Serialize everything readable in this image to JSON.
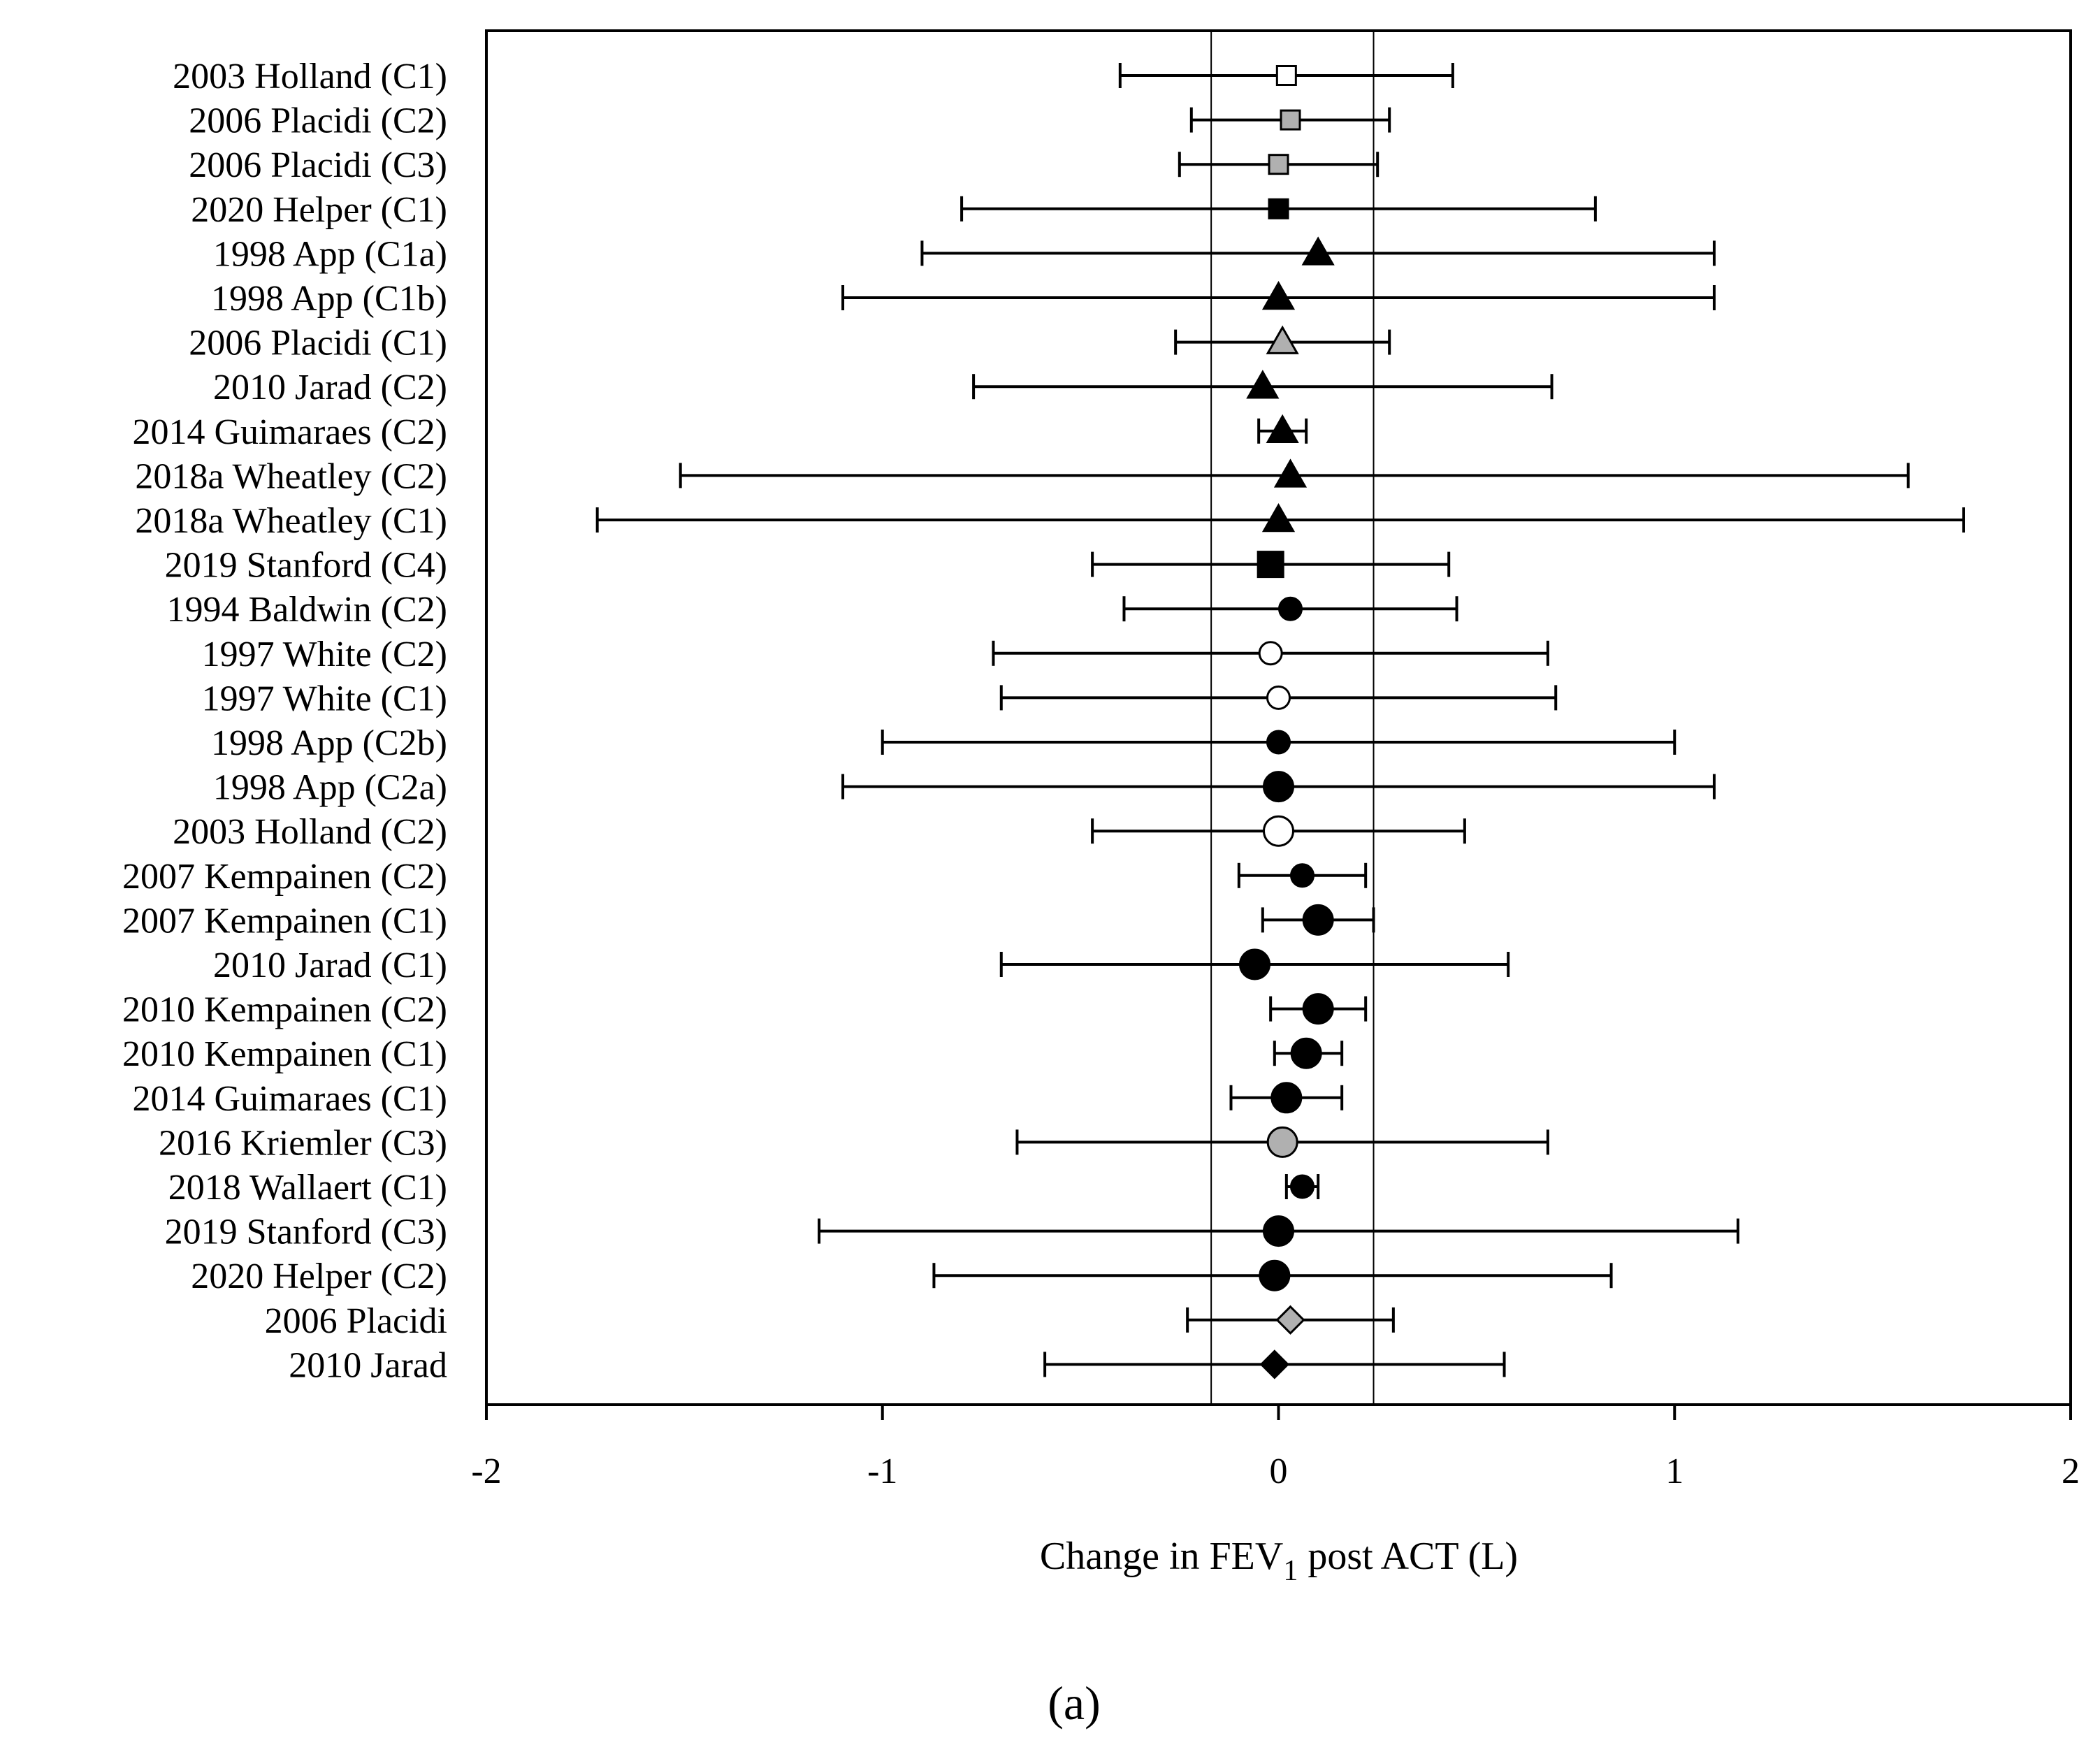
{
  "chart_data": {
    "type": "forest",
    "xlabel": "Change in FEV",
    "xlabel_subscript": "1",
    "xlabel_suffix": " post ACT (L)",
    "panel_label": "(a)",
    "xlim": [
      -2,
      2
    ],
    "xticks": [
      -2,
      -1,
      0,
      1,
      2
    ],
    "xtick_labels": [
      "-2",
      "-1",
      "0",
      "1",
      "2"
    ],
    "reference_lines": [
      -0.17,
      0.24
    ],
    "studies": [
      {
        "label": "2003 Holland (C1)",
        "mean": 0.02,
        "lower": -0.4,
        "upper": 0.44,
        "marker": "square",
        "fill": "white",
        "size": "small"
      },
      {
        "label": "2006 Placidi (C2)",
        "mean": 0.03,
        "lower": -0.22,
        "upper": 0.28,
        "marker": "square",
        "fill": "gray",
        "size": "small"
      },
      {
        "label": "2006 Placidi (C3)",
        "mean": 0.0,
        "lower": -0.25,
        "upper": 0.25,
        "marker": "square",
        "fill": "gray",
        "size": "small"
      },
      {
        "label": "2020 Helper (C1)",
        "mean": 0.0,
        "lower": -0.8,
        "upper": 0.8,
        "marker": "square",
        "fill": "black",
        "size": "small"
      },
      {
        "label": "1998 App (C1a)",
        "mean": 0.1,
        "lower": -0.9,
        "upper": 1.1,
        "marker": "triangle",
        "fill": "black",
        "size": "small"
      },
      {
        "label": "1998 App (C1b)",
        "mean": 0.0,
        "lower": -1.1,
        "upper": 1.1,
        "marker": "triangle",
        "fill": "black",
        "size": "small"
      },
      {
        "label": "2006 Placidi (C1)",
        "mean": 0.01,
        "lower": -0.26,
        "upper": 0.28,
        "marker": "triangle",
        "fill": "gray",
        "size": "small"
      },
      {
        "label": "2010 Jarad (C2)",
        "mean": -0.04,
        "lower": -0.77,
        "upper": 0.69,
        "marker": "triangle",
        "fill": "black",
        "size": "small"
      },
      {
        "label": "2014 Guimaraes (C2)",
        "mean": 0.01,
        "lower": -0.05,
        "upper": 0.07,
        "marker": "triangle",
        "fill": "black",
        "size": "small"
      },
      {
        "label": "2018a Wheatley (C2)",
        "mean": 0.03,
        "lower": -1.51,
        "upper": 1.59,
        "marker": "triangle",
        "fill": "black",
        "size": "small"
      },
      {
        "label": "2018a Wheatley (C1)",
        "mean": 0.0,
        "lower": -1.72,
        "upper": 1.73,
        "marker": "triangle",
        "fill": "black",
        "size": "small"
      },
      {
        "label": "2019 Stanford (C4)",
        "mean": -0.02,
        "lower": -0.47,
        "upper": 0.43,
        "marker": "square",
        "fill": "black",
        "size": "large"
      },
      {
        "label": "1994 Baldwin  (C2)",
        "mean": 0.03,
        "lower": -0.39,
        "upper": 0.45,
        "marker": "circle",
        "fill": "black",
        "size": "small"
      },
      {
        "label": "1997 White (C2)",
        "mean": -0.02,
        "lower": -0.72,
        "upper": 0.68,
        "marker": "circle",
        "fill": "white",
        "size": "small"
      },
      {
        "label": "1997 White (C1)",
        "mean": 0.0,
        "lower": -0.7,
        "upper": 0.7,
        "marker": "circle",
        "fill": "white",
        "size": "small"
      },
      {
        "label": "1998 App (C2b)",
        "mean": 0.0,
        "lower": -1.0,
        "upper": 1.0,
        "marker": "circle",
        "fill": "black",
        "size": "small"
      },
      {
        "label": "1998 App (C2a)",
        "mean": 0.0,
        "lower": -1.1,
        "upper": 1.1,
        "marker": "circle",
        "fill": "black",
        "size": "large"
      },
      {
        "label": "2003 Holland (C2)",
        "mean": 0.0,
        "lower": -0.47,
        "upper": 0.47,
        "marker": "circle",
        "fill": "white",
        "size": "large"
      },
      {
        "label": "2007 Kempainen (C2)",
        "mean": 0.06,
        "lower": -0.1,
        "upper": 0.22,
        "marker": "circle",
        "fill": "black",
        "size": "small"
      },
      {
        "label": "2007 Kempainen (C1)",
        "mean": 0.1,
        "lower": -0.04,
        "upper": 0.24,
        "marker": "circle",
        "fill": "black",
        "size": "large"
      },
      {
        "label": "2010 Jarad (C1)",
        "mean": -0.06,
        "lower": -0.7,
        "upper": 0.58,
        "marker": "circle",
        "fill": "black",
        "size": "large"
      },
      {
        "label": "2010 Kempainen (C2)",
        "mean": 0.1,
        "lower": -0.02,
        "upper": 0.22,
        "marker": "circle",
        "fill": "black",
        "size": "large"
      },
      {
        "label": "2010 Kempainen (C1)",
        "mean": 0.07,
        "lower": -0.01,
        "upper": 0.16,
        "marker": "circle",
        "fill": "black",
        "size": "large"
      },
      {
        "label": "2014 Guimaraes (C1)",
        "mean": 0.02,
        "lower": -0.12,
        "upper": 0.16,
        "marker": "circle",
        "fill": "black",
        "size": "large"
      },
      {
        "label": "2016 Kriemler (C3)",
        "mean": 0.01,
        "lower": -0.66,
        "upper": 0.68,
        "marker": "circle",
        "fill": "gray",
        "size": "large"
      },
      {
        "label": "2018 Wallaert (C1)",
        "mean": 0.06,
        "lower": 0.02,
        "upper": 0.1,
        "marker": "circle",
        "fill": "black",
        "size": "small"
      },
      {
        "label": "2019 Stanford (C3)",
        "mean": 0.0,
        "lower": -1.16,
        "upper": 1.16,
        "marker": "circle",
        "fill": "black",
        "size": "large"
      },
      {
        "label": "2020 Helper (C2)",
        "mean": -0.01,
        "lower": -0.87,
        "upper": 0.84,
        "marker": "circle",
        "fill": "black",
        "size": "large"
      },
      {
        "label": "2006 Placidi",
        "mean": 0.03,
        "lower": -0.23,
        "upper": 0.29,
        "marker": "diamond",
        "fill": "gray",
        "size": "small"
      },
      {
        "label": "2010 Jarad",
        "mean": -0.01,
        "lower": -0.59,
        "upper": 0.57,
        "marker": "diamond",
        "fill": "black",
        "size": "small"
      }
    ],
    "colors": {
      "black": "#000000",
      "gray": "#b0b0b0",
      "white": "#ffffff",
      "line": "#000000"
    }
  }
}
